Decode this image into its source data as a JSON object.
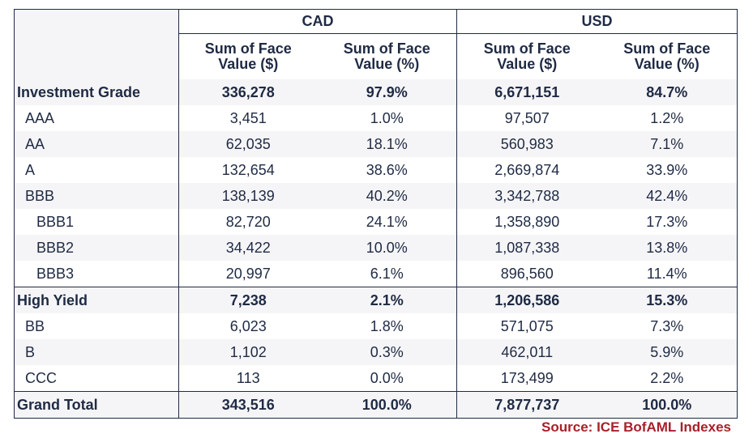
{
  "chart_data": {
    "type": "table",
    "column_groups": [
      "CAD",
      "USD"
    ],
    "columns": [
      "Sum of Face Value ($)",
      "Sum of Face Value (%)",
      "Sum of Face Value ($)",
      "Sum of Face Value (%)"
    ],
    "column_lines": [
      [
        "Sum of Face",
        "Value ($)"
      ],
      [
        "Sum of Face",
        "Value (%)"
      ],
      [
        "Sum of Face",
        "Value ($)"
      ],
      [
        "Sum of Face",
        "Value (%)"
      ]
    ],
    "rows": [
      {
        "label": "Investment Grade",
        "level": 0,
        "bold": true,
        "cad_value": "336,278",
        "cad_pct": "97.9%",
        "usd_value": "6,671,151",
        "usd_pct": "84.7%"
      },
      {
        "label": "AAA",
        "level": 1,
        "bold": false,
        "cad_value": "3,451",
        "cad_pct": "1.0%",
        "usd_value": "97,507",
        "usd_pct": "1.2%"
      },
      {
        "label": "AA",
        "level": 1,
        "bold": false,
        "cad_value": "62,035",
        "cad_pct": "18.1%",
        "usd_value": "560,983",
        "usd_pct": "7.1%"
      },
      {
        "label": "A",
        "level": 1,
        "bold": false,
        "cad_value": "132,654",
        "cad_pct": "38.6%",
        "usd_value": "2,669,874",
        "usd_pct": "33.9%"
      },
      {
        "label": "BBB",
        "level": 1,
        "bold": false,
        "cad_value": "138,139",
        "cad_pct": "40.2%",
        "usd_value": "3,342,788",
        "usd_pct": "42.4%"
      },
      {
        "label": "BBB1",
        "level": 2,
        "bold": false,
        "cad_value": "82,720",
        "cad_pct": "24.1%",
        "usd_value": "1,358,890",
        "usd_pct": "17.3%"
      },
      {
        "label": "BBB2",
        "level": 2,
        "bold": false,
        "cad_value": "34,422",
        "cad_pct": "10.0%",
        "usd_value": "1,087,338",
        "usd_pct": "13.8%"
      },
      {
        "label": "BBB3",
        "level": 2,
        "bold": false,
        "cad_value": "20,997",
        "cad_pct": "6.1%",
        "usd_value": "896,560",
        "usd_pct": "11.4%"
      },
      {
        "label": "High Yield",
        "level": 0,
        "bold": true,
        "cad_value": "7,238",
        "cad_pct": "2.1%",
        "usd_value": "1,206,586",
        "usd_pct": "15.3%"
      },
      {
        "label": "BB",
        "level": 1,
        "bold": false,
        "cad_value": "6,023",
        "cad_pct": "1.8%",
        "usd_value": "571,075",
        "usd_pct": "7.3%"
      },
      {
        "label": "B",
        "level": 1,
        "bold": false,
        "cad_value": "1,102",
        "cad_pct": "0.3%",
        "usd_value": "462,011",
        "usd_pct": "5.9%"
      },
      {
        "label": "CCC",
        "level": 1,
        "bold": false,
        "cad_value": "113",
        "cad_pct": "0.0%",
        "usd_value": "173,499",
        "usd_pct": "2.2%"
      },
      {
        "label": "Grand Total",
        "level": 0,
        "bold": true,
        "cad_value": "343,516",
        "cad_pct": "100.0%",
        "usd_value": "7,877,737",
        "usd_pct": "100.0%"
      }
    ],
    "source": "Source: ICE BofAML Indexes"
  },
  "colors": {
    "text": "#1f2a44",
    "row_shade": "#f5f5f7",
    "border": "#1f2a44",
    "source_text": "#a8202a"
  }
}
